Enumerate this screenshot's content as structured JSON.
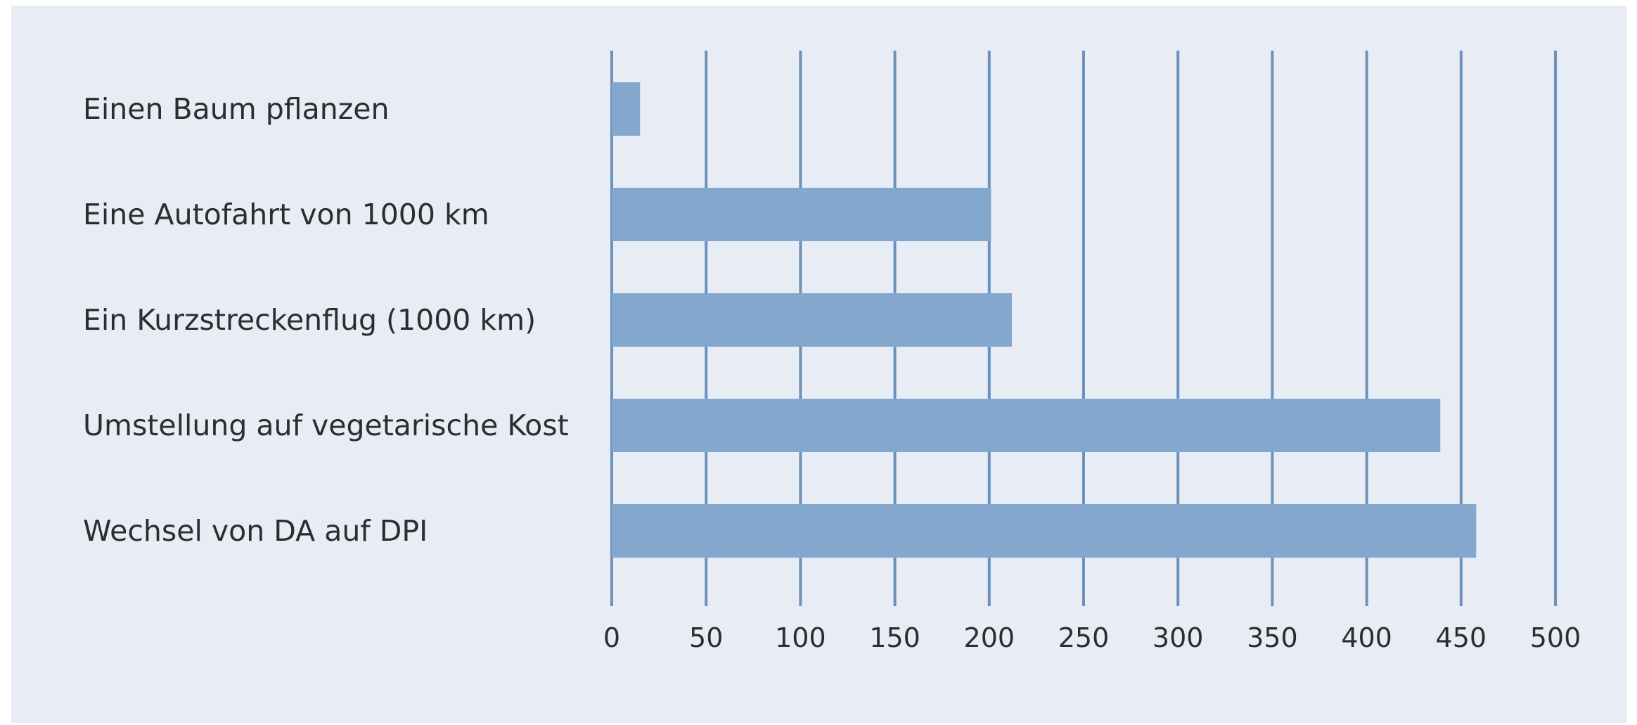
{
  "chart_data": {
    "type": "bar",
    "orientation": "horizontal",
    "categories": [
      "Einen Baum pflanzen",
      "Eine Autofahrt von 1000 km",
      "Ein Kurzstreckenflug (1000 km)",
      "Umstellung auf vegetarische Kost",
      "Wechsel von DA auf DPI"
    ],
    "values": [
      15,
      201,
      212,
      439,
      458
    ],
    "xlim": [
      0,
      500
    ],
    "xticks": [
      0,
      50,
      100,
      150,
      200,
      250,
      300,
      350,
      400,
      450,
      500
    ],
    "grid": "vertical",
    "title": "",
    "xlabel": "",
    "ylabel": "",
    "colors": {
      "background": "#e8edf5",
      "bar": "#84a7cd",
      "gridline": "#6b91bd",
      "text": "#2d2d2d"
    }
  }
}
